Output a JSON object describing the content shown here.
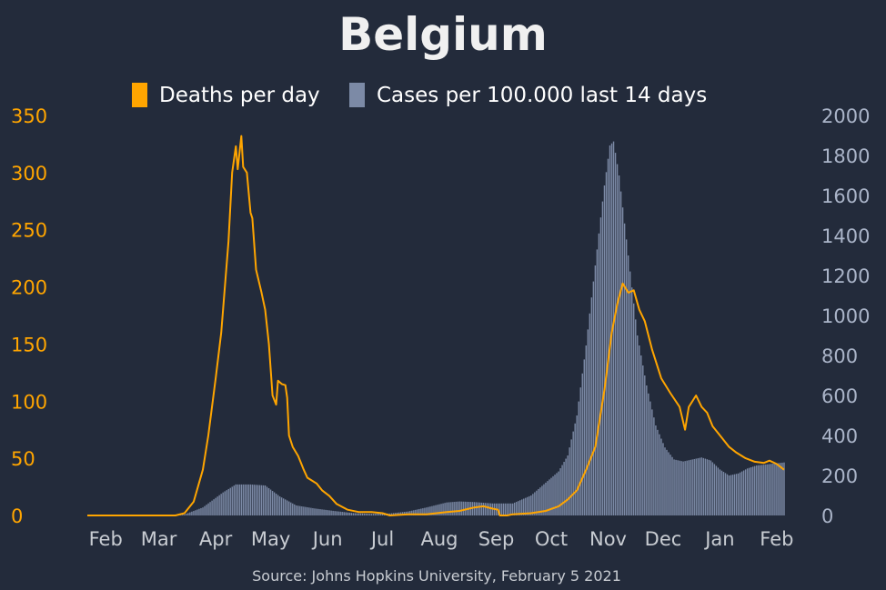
{
  "colors": {
    "background": "#232b3b",
    "deaths": "#ffa500",
    "cases": "#7c8aa6",
    "text": "#ffffff",
    "tick": "#c8ccd2",
    "source": "#c8ccd2"
  },
  "chart_data": {
    "type": "bar+line",
    "title": "Belgium",
    "source": "Source: Johns Hopkins University, February 5 2021",
    "legend_position": "top-center",
    "x_tick_labels": [
      "Feb",
      "Mar",
      "Apr",
      "May",
      "Jun",
      "Jul",
      "Aug",
      "Sep",
      "Oct",
      "Nov",
      "Dec",
      "Jan",
      "Feb"
    ],
    "x_range": [
      "2020-01-22",
      "2021-02-05"
    ],
    "y_left": {
      "ticks": [
        "0",
        "50",
        "100",
        "150",
        "200",
        "250",
        "300",
        "350"
      ],
      "ylim": [
        0,
        350
      ]
    },
    "y_right": {
      "ticks": [
        "0",
        "200",
        "400",
        "600",
        "800",
        "1000",
        "1200",
        "1400",
        "1600",
        "1800",
        "2000"
      ],
      "ylim": [
        0,
        2000
      ]
    },
    "series": [
      {
        "name": "Deaths per day",
        "type": "line",
        "axis": "left",
        "points": [
          [
            "2020-01-22",
            0
          ],
          [
            "2020-03-10",
            0
          ],
          [
            "2020-03-15",
            2
          ],
          [
            "2020-03-20",
            12
          ],
          [
            "2020-03-25",
            40
          ],
          [
            "2020-03-28",
            70
          ],
          [
            "2020-04-01",
            120
          ],
          [
            "2020-04-04",
            160
          ],
          [
            "2020-04-06",
            200
          ],
          [
            "2020-04-08",
            240
          ],
          [
            "2020-04-10",
            300
          ],
          [
            "2020-04-12",
            323
          ],
          [
            "2020-04-13",
            303
          ],
          [
            "2020-04-15",
            332
          ],
          [
            "2020-04-16",
            305
          ],
          [
            "2020-04-18",
            300
          ],
          [
            "2020-04-20",
            265
          ],
          [
            "2020-04-21",
            260
          ],
          [
            "2020-04-23",
            215
          ],
          [
            "2020-04-26",
            195
          ],
          [
            "2020-04-28",
            180
          ],
          [
            "2020-04-30",
            150
          ],
          [
            "2020-05-02",
            105
          ],
          [
            "2020-05-04",
            97
          ],
          [
            "2020-05-05",
            118
          ],
          [
            "2020-05-07",
            115
          ],
          [
            "2020-05-09",
            114
          ],
          [
            "2020-05-10",
            103
          ],
          [
            "2020-05-11",
            70
          ],
          [
            "2020-05-13",
            60
          ],
          [
            "2020-05-16",
            52
          ],
          [
            "2020-05-19",
            40
          ],
          [
            "2020-05-21",
            33
          ],
          [
            "2020-05-23",
            31
          ],
          [
            "2020-05-26",
            28
          ],
          [
            "2020-05-29",
            22
          ],
          [
            "2020-06-02",
            17
          ],
          [
            "2020-06-06",
            10
          ],
          [
            "2020-06-12",
            5
          ],
          [
            "2020-06-18",
            3
          ],
          [
            "2020-06-25",
            3
          ],
          [
            "2020-07-01",
            2
          ],
          [
            "2020-07-05",
            0
          ],
          [
            "2020-07-15",
            1
          ],
          [
            "2020-07-25",
            1
          ],
          [
            "2020-08-05",
            3
          ],
          [
            "2020-08-12",
            4
          ],
          [
            "2020-08-20",
            7
          ],
          [
            "2020-08-25",
            8
          ],
          [
            "2020-08-30",
            6
          ],
          [
            "2020-09-02",
            5
          ],
          [
            "2020-09-03",
            0
          ],
          [
            "2020-09-07",
            0
          ],
          [
            "2020-09-10",
            1
          ],
          [
            "2020-09-20",
            2
          ],
          [
            "2020-09-28",
            4
          ],
          [
            "2020-10-05",
            8
          ],
          [
            "2020-10-10",
            14
          ],
          [
            "2020-10-15",
            22
          ],
          [
            "2020-10-20",
            40
          ],
          [
            "2020-10-25",
            60
          ],
          [
            "2020-10-30",
            110
          ],
          [
            "2020-11-03",
            160
          ],
          [
            "2020-11-06",
            185
          ],
          [
            "2020-11-09",
            203
          ],
          [
            "2020-11-12",
            195
          ],
          [
            "2020-11-15",
            197
          ],
          [
            "2020-11-18",
            180
          ],
          [
            "2020-11-21",
            170
          ],
          [
            "2020-11-25",
            145
          ],
          [
            "2020-11-30",
            120
          ],
          [
            "2020-12-05",
            107
          ],
          [
            "2020-12-10",
            95
          ],
          [
            "2020-12-13",
            75
          ],
          [
            "2020-12-15",
            95
          ],
          [
            "2020-12-19",
            105
          ],
          [
            "2020-12-22",
            95
          ],
          [
            "2020-12-25",
            90
          ],
          [
            "2020-12-28",
            78
          ],
          [
            "2021-01-02",
            68
          ],
          [
            "2021-01-06",
            60
          ],
          [
            "2021-01-10",
            55
          ],
          [
            "2021-01-15",
            50
          ],
          [
            "2021-01-20",
            47
          ],
          [
            "2021-01-25",
            46
          ],
          [
            "2021-01-28",
            48
          ],
          [
            "2021-02-01",
            45
          ],
          [
            "2021-02-05",
            40
          ]
        ]
      },
      {
        "name": "Cases per 100.000 last 14 days",
        "type": "bar",
        "axis": "right",
        "points": [
          [
            "2020-01-22",
            0
          ],
          [
            "2020-03-05",
            0
          ],
          [
            "2020-03-15",
            5
          ],
          [
            "2020-03-25",
            40
          ],
          [
            "2020-04-05",
            115
          ],
          [
            "2020-04-12",
            155
          ],
          [
            "2020-04-20",
            155
          ],
          [
            "2020-04-28",
            150
          ],
          [
            "2020-05-06",
            95
          ],
          [
            "2020-05-15",
            50
          ],
          [
            "2020-05-25",
            35
          ],
          [
            "2020-06-05",
            22
          ],
          [
            "2020-06-15",
            12
          ],
          [
            "2020-06-25",
            8
          ],
          [
            "2020-07-05",
            10
          ],
          [
            "2020-07-15",
            20
          ],
          [
            "2020-07-25",
            40
          ],
          [
            "2020-08-05",
            65
          ],
          [
            "2020-08-12",
            70
          ],
          [
            "2020-08-20",
            67
          ],
          [
            "2020-08-30",
            60
          ],
          [
            "2020-09-10",
            60
          ],
          [
            "2020-09-20",
            100
          ],
          [
            "2020-09-30",
            180
          ],
          [
            "2020-10-05",
            220
          ],
          [
            "2020-10-10",
            300
          ],
          [
            "2020-10-15",
            500
          ],
          [
            "2020-10-20",
            850
          ],
          [
            "2020-10-25",
            1250
          ],
          [
            "2020-10-30",
            1650
          ],
          [
            "2020-11-02",
            1850
          ],
          [
            "2020-11-04",
            1870
          ],
          [
            "2020-11-07",
            1700
          ],
          [
            "2020-11-12",
            1300
          ],
          [
            "2020-11-17",
            900
          ],
          [
            "2020-11-22",
            650
          ],
          [
            "2020-11-27",
            450
          ],
          [
            "2020-12-02",
            340
          ],
          [
            "2020-12-07",
            280
          ],
          [
            "2020-12-12",
            270
          ],
          [
            "2020-12-17",
            280
          ],
          [
            "2020-12-22",
            290
          ],
          [
            "2020-12-27",
            275
          ],
          [
            "2021-01-01",
            230
          ],
          [
            "2021-01-06",
            200
          ],
          [
            "2021-01-11",
            210
          ],
          [
            "2021-01-16",
            235
          ],
          [
            "2021-01-21",
            250
          ],
          [
            "2021-01-26",
            255
          ],
          [
            "2021-02-05",
            265
          ]
        ]
      }
    ]
  }
}
